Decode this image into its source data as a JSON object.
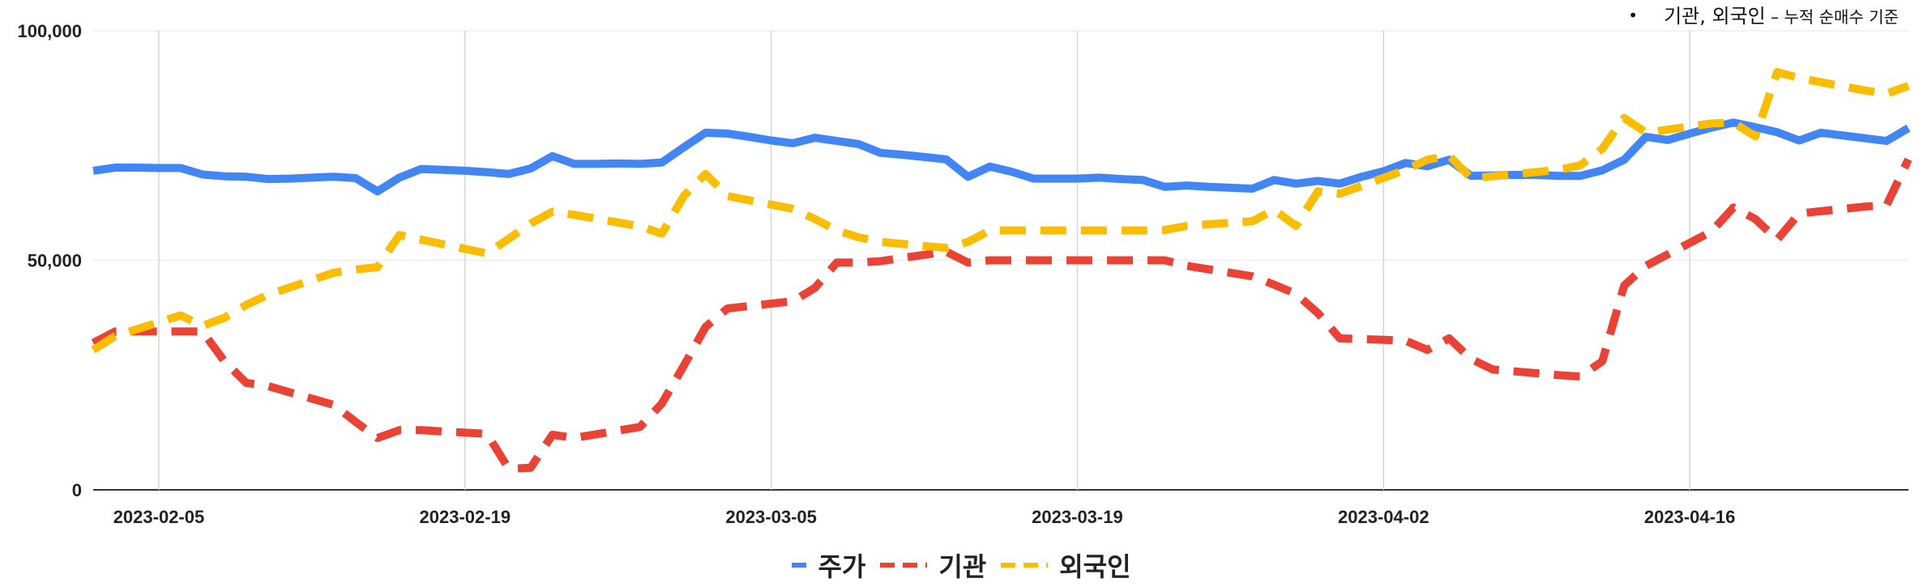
{
  "note": {
    "bullet": "•",
    "text": "기관, 외국인",
    "subtext": " – 누적 순매수 기준"
  },
  "chart_data": {
    "type": "line",
    "title": "",
    "xlabel": "",
    "ylabel": "",
    "ylim": [
      0,
      100000
    ],
    "y_ticks": [
      "0",
      "50,000",
      "100,000"
    ],
    "x_ticks": [
      "2023-02-05",
      "2023-02-19",
      "2023-03-05",
      "2023-03-19",
      "2023-04-02",
      "2023-04-16"
    ],
    "x_range": [
      "2023-02-02",
      "2023-04-23"
    ],
    "grid": true,
    "legend_position": "bottom",
    "series": [
      {
        "name": "주가",
        "color": "#4285F4",
        "dash": "solid",
        "points": [
          [
            "2023-02-02",
            69500
          ],
          [
            "2023-02-03",
            70200
          ],
          [
            "2023-02-04",
            70200
          ],
          [
            "2023-02-05",
            70100
          ],
          [
            "2023-02-06",
            70100
          ],
          [
            "2023-02-07",
            68700
          ],
          [
            "2023-02-08",
            68300
          ],
          [
            "2023-02-09",
            68200
          ],
          [
            "2023-02-10",
            67700
          ],
          [
            "2023-02-11",
            67800
          ],
          [
            "2023-02-12",
            68000
          ],
          [
            "2023-02-13",
            68200
          ],
          [
            "2023-02-14",
            67900
          ],
          [
            "2023-02-15",
            65000
          ],
          [
            "2023-02-16",
            68000
          ],
          [
            "2023-02-17",
            69900
          ],
          [
            "2023-02-18",
            69700
          ],
          [
            "2023-02-19",
            69500
          ],
          [
            "2023-02-20",
            69200
          ],
          [
            "2023-02-21",
            68800
          ],
          [
            "2023-02-22",
            70000
          ],
          [
            "2023-02-23",
            72700
          ],
          [
            "2023-02-24",
            71000
          ],
          [
            "2023-02-25",
            71000
          ],
          [
            "2023-02-26",
            71100
          ],
          [
            "2023-02-27",
            71000
          ],
          [
            "2023-02-28",
            71300
          ],
          [
            "2023-03-01",
            74600
          ],
          [
            "2023-03-02",
            77800
          ],
          [
            "2023-03-03",
            77600
          ],
          [
            "2023-03-04",
            76900
          ],
          [
            "2023-03-05",
            76100
          ],
          [
            "2023-03-06",
            75500
          ],
          [
            "2023-03-07",
            76700
          ],
          [
            "2023-03-08",
            76000
          ],
          [
            "2023-03-09",
            75300
          ],
          [
            "2023-03-10",
            73400
          ],
          [
            "2023-03-11",
            73000
          ],
          [
            "2023-03-12",
            72500
          ],
          [
            "2023-03-13",
            72000
          ],
          [
            "2023-03-14",
            68200
          ],
          [
            "2023-03-15",
            70400
          ],
          [
            "2023-03-16",
            69300
          ],
          [
            "2023-03-17",
            67800
          ],
          [
            "2023-03-18",
            67800
          ],
          [
            "2023-03-19",
            67800
          ],
          [
            "2023-03-20",
            68000
          ],
          [
            "2023-03-21",
            67700
          ],
          [
            "2023-03-22",
            67500
          ],
          [
            "2023-03-23",
            66000
          ],
          [
            "2023-03-24",
            66300
          ],
          [
            "2023-03-25",
            66000
          ],
          [
            "2023-03-26",
            65800
          ],
          [
            "2023-03-27",
            65600
          ],
          [
            "2023-03-28",
            67500
          ],
          [
            "2023-03-29",
            66700
          ],
          [
            "2023-03-30",
            67300
          ],
          [
            "2023-03-31",
            66700
          ],
          [
            "2023-04-01",
            68200
          ],
          [
            "2023-04-02",
            69400
          ],
          [
            "2023-04-03",
            71200
          ],
          [
            "2023-04-04",
            70500
          ],
          [
            "2023-04-05",
            71900
          ],
          [
            "2023-04-06",
            68400
          ],
          [
            "2023-04-07",
            68500
          ],
          [
            "2023-04-08",
            68600
          ],
          [
            "2023-04-09",
            68600
          ],
          [
            "2023-04-10",
            68400
          ],
          [
            "2023-04-11",
            68400
          ],
          [
            "2023-04-12",
            69600
          ],
          [
            "2023-04-13",
            71900
          ],
          [
            "2023-04-14",
            76900
          ],
          [
            "2023-04-15",
            76200
          ],
          [
            "2023-04-16",
            77600
          ],
          [
            "2023-04-17",
            78900
          ],
          [
            "2023-04-18",
            80000
          ],
          [
            "2023-04-19",
            79000
          ],
          [
            "2023-04-20",
            77900
          ],
          [
            "2023-04-21",
            76100
          ],
          [
            "2023-04-22",
            77800
          ],
          [
            "2023-04-23",
            77200
          ],
          [
            "2023-04-24",
            76600
          ],
          [
            "2023-04-25",
            76000
          ],
          [
            "2023-04-26",
            78800
          ]
        ]
      },
      {
        "name": "기관",
        "color": "#EA4335",
        "dash": "dashed",
        "points": [
          [
            "2023-02-02",
            32000
          ],
          [
            "2023-02-03",
            34500
          ],
          [
            "2023-02-06",
            34500
          ],
          [
            "2023-02-07",
            34500
          ],
          [
            "2023-02-08",
            28000
          ],
          [
            "2023-02-09",
            23300
          ],
          [
            "2023-02-10",
            22600
          ],
          [
            "2023-02-13",
            18500
          ],
          [
            "2023-02-14",
            14800
          ],
          [
            "2023-02-15",
            11300
          ],
          [
            "2023-02-16",
            13000
          ],
          [
            "2023-02-17",
            13000
          ],
          [
            "2023-02-20",
            12200
          ],
          [
            "2023-02-21",
            4600
          ],
          [
            "2023-02-22",
            4800
          ],
          [
            "2023-02-23",
            12000
          ],
          [
            "2023-02-24",
            11300
          ],
          [
            "2023-02-27",
            13700
          ],
          [
            "2023-02-28",
            18800
          ],
          [
            "2023-03-01",
            27000
          ],
          [
            "2023-03-02",
            35500
          ],
          [
            "2023-03-03",
            39500
          ],
          [
            "2023-03-06",
            41100
          ],
          [
            "2023-03-07",
            44000
          ],
          [
            "2023-03-08",
            49500
          ],
          [
            "2023-03-09",
            49500
          ],
          [
            "2023-03-10",
            49800
          ],
          [
            "2023-03-13",
            51900
          ],
          [
            "2023-03-14",
            49500
          ],
          [
            "2023-03-15",
            50000
          ],
          [
            "2023-03-22",
            50000
          ],
          [
            "2023-03-23",
            50000
          ],
          [
            "2023-03-24",
            48800
          ],
          [
            "2023-03-27",
            46500
          ],
          [
            "2023-03-28",
            44700
          ],
          [
            "2023-03-29",
            42700
          ],
          [
            "2023-03-30",
            38500
          ],
          [
            "2023-03-31",
            33000
          ],
          [
            "2023-04-03",
            32500
          ],
          [
            "2023-04-04",
            30500
          ],
          [
            "2023-04-05",
            33000
          ],
          [
            "2023-04-06",
            28500
          ],
          [
            "2023-04-07",
            26200
          ],
          [
            "2023-04-10",
            25000
          ],
          [
            "2023-04-11",
            24700
          ],
          [
            "2023-04-12",
            28000
          ],
          [
            "2023-04-13",
            44500
          ],
          [
            "2023-04-14",
            48800
          ],
          [
            "2023-04-17",
            56300
          ],
          [
            "2023-04-18",
            61500
          ],
          [
            "2023-04-19",
            59000
          ],
          [
            "2023-04-20",
            54500
          ],
          [
            "2023-04-21",
            60200
          ],
          [
            "2023-04-24",
            61700
          ],
          [
            "2023-04-25",
            62000
          ],
          [
            "2023-04-26",
            72000
          ]
        ]
      },
      {
        "name": "외국인",
        "color": "#FBBC04",
        "dash": "dashed",
        "points": [
          [
            "2023-02-02",
            30500
          ],
          [
            "2023-02-03",
            33500
          ],
          [
            "2023-02-06",
            38000
          ],
          [
            "2023-02-07",
            35700
          ],
          [
            "2023-02-08",
            37500
          ],
          [
            "2023-02-09",
            40300
          ],
          [
            "2023-02-10",
            42500
          ],
          [
            "2023-02-13",
            47300
          ],
          [
            "2023-02-14",
            48000
          ],
          [
            "2023-02-15",
            48500
          ],
          [
            "2023-02-16",
            55500
          ],
          [
            "2023-02-17",
            54500
          ],
          [
            "2023-02-20",
            51500
          ],
          [
            "2023-02-21",
            54700
          ],
          [
            "2023-02-22",
            58000
          ],
          [
            "2023-02-23",
            60600
          ],
          [
            "2023-02-24",
            59900
          ],
          [
            "2023-02-27",
            57400
          ],
          [
            "2023-02-28",
            55800
          ],
          [
            "2023-03-01",
            64000
          ],
          [
            "2023-03-02",
            68800
          ],
          [
            "2023-03-03",
            64000
          ],
          [
            "2023-03-06",
            61200
          ],
          [
            "2023-03-07",
            59000
          ],
          [
            "2023-03-08",
            56500
          ],
          [
            "2023-03-09",
            55000
          ],
          [
            "2023-03-10",
            54000
          ],
          [
            "2023-03-13",
            52700
          ],
          [
            "2023-03-14",
            54000
          ],
          [
            "2023-03-15",
            56500
          ],
          [
            "2023-03-22",
            56500
          ],
          [
            "2023-03-23",
            56600
          ],
          [
            "2023-03-24",
            57500
          ],
          [
            "2023-03-27",
            58500
          ],
          [
            "2023-03-28",
            61000
          ],
          [
            "2023-03-29",
            57500
          ],
          [
            "2023-03-30",
            65000
          ],
          [
            "2023-03-31",
            64500
          ],
          [
            "2023-04-03",
            69700
          ],
          [
            "2023-04-04",
            71900
          ],
          [
            "2023-04-05",
            72800
          ],
          [
            "2023-04-06",
            67900
          ],
          [
            "2023-04-07",
            68300
          ],
          [
            "2023-04-10",
            69700
          ],
          [
            "2023-04-11",
            70700
          ],
          [
            "2023-04-12",
            74300
          ],
          [
            "2023-04-13",
            81000
          ],
          [
            "2023-04-14",
            77800
          ],
          [
            "2023-04-17",
            79800
          ],
          [
            "2023-04-18",
            80000
          ],
          [
            "2023-04-19",
            77000
          ],
          [
            "2023-04-20",
            91000
          ],
          [
            "2023-04-21",
            89700
          ],
          [
            "2023-04-24",
            87000
          ],
          [
            "2023-04-25",
            86300
          ],
          [
            "2023-04-26",
            88000
          ]
        ]
      }
    ]
  }
}
